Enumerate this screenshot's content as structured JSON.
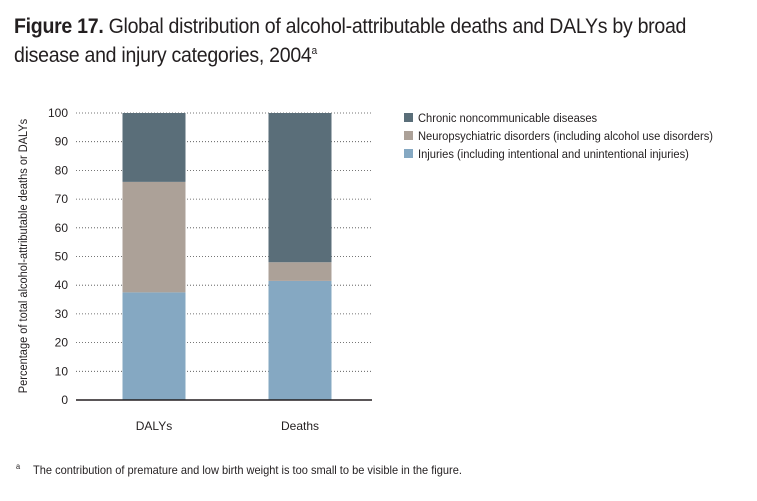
{
  "figure_label": "Figure 17.",
  "title_text": "Global distribution of alcohol-attributable deaths and DALYs by broad disease and injury categories, 2004",
  "title_superscript": "a",
  "footnote_marker": "a",
  "footnote_text": "The contribution of premature and low birth weight is too small to be visible in the figure.",
  "chart_data": {
    "type": "bar",
    "stacked": true,
    "title": "Global distribution of alcohol-attributable deaths and DALYs by broad disease and injury categories, 2004",
    "xlabel": "",
    "ylabel": "Percentage of total alcohol-attributable deaths or DALYs",
    "ylim": [
      0,
      100
    ],
    "yticks": [
      0,
      10,
      20,
      30,
      40,
      50,
      60,
      70,
      80,
      90,
      100
    ],
    "grid": "horizontal dotted",
    "legend_position": "top-right",
    "categories": [
      "DALYs",
      "Deaths"
    ],
    "series": [
      {
        "name": "Injuries (including intentional and unintentional injuries)",
        "values": [
          37.5,
          41.5
        ],
        "color": "#85a8c2"
      },
      {
        "name": "Neuropsychiatric disorders (including alcohol use disorders)",
        "values": [
          38.5,
          6.5
        ],
        "color": "#aca198"
      },
      {
        "name": "Chronic noncommunicable diseases",
        "values": [
          24,
          52
        ],
        "color": "#5a6e79"
      }
    ],
    "legend_order": [
      2,
      1,
      0
    ]
  }
}
